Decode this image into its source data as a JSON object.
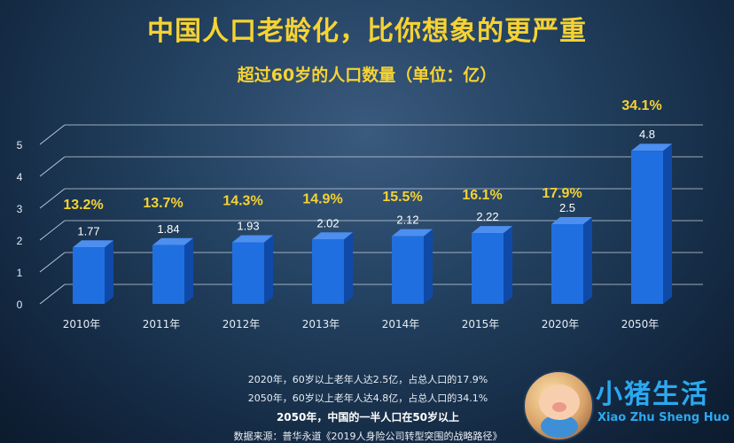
{
  "chart_data": {
    "type": "bar",
    "title": "中国人口老龄化，比你想象的更严重",
    "subtitle": "超过60岁的人口数量（单位：亿）",
    "categories": [
      "2010年",
      "2011年",
      "2012年",
      "2013年",
      "2014年",
      "2015年",
      "2020年",
      "2050年"
    ],
    "values": [
      1.77,
      1.84,
      1.93,
      2.02,
      2.12,
      2.22,
      2.5,
      4.8
    ],
    "value_labels": [
      "1.77",
      "1.84",
      "1.93",
      "2.02",
      "2.12",
      "2.22",
      "2.5",
      "4.8"
    ],
    "percentages": [
      "13.2%",
      "13.7%",
      "14.3%",
      "14.9%",
      "15.5%",
      "16.1%",
      "17.9%",
      "34.1%"
    ],
    "ylim": [
      0,
      5
    ],
    "yticks": [
      "0",
      "1",
      "2",
      "3",
      "4",
      "5"
    ],
    "grid": true,
    "bar_color": "#1f6fe0",
    "percent_color": "#f6d233"
  },
  "notes": [
    "2020年，60岁以上老年人达2.5亿，占总人口的17.9%",
    "2050年，60岁以上老年人达4.8亿，占总人口的34.1%",
    "2050年，中国的一半人口在50岁以上",
    "数据来源：普华永道《2019人身险公司转型突围的战略路径》"
  ],
  "logo": {
    "name_cn": "小猪生活",
    "name_en": "Xiao Zhu Sheng Huo"
  }
}
